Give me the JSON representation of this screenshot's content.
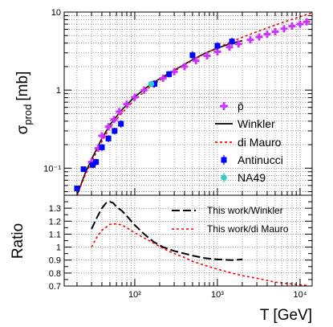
{
  "colors": {
    "pbar": "#cc33ff",
    "winkler": "#000000",
    "dimauro": "#ff0000",
    "antinucci": "#0000ff",
    "na49": "#33cccc",
    "grid": "#555555"
  },
  "chart_data": [
    {
      "type": "scatter",
      "title": "",
      "xlabel": "T [GeV]",
      "ylabel": "σ_prod [mb]",
      "ylabel_main": "σ",
      "ylabel_sub": "prod",
      "ylabel_unit": "[mb]",
      "xscale": "log",
      "yscale": "log",
      "xlim": [
        14,
        14000
      ],
      "ylim": [
        0.045,
        10
      ],
      "grid": true,
      "legend_position": "bottom-right",
      "x_tick_labels": [
        "10²",
        "10³",
        "10⁴"
      ],
      "x_tick_values": [
        100,
        1000,
        10000
      ],
      "y_tick_labels": [
        "10⁻¹",
        "1",
        "10"
      ],
      "y_tick_values": [
        0.1,
        1,
        10
      ],
      "series": [
        {
          "name": "p̄",
          "kind": "markers-plus",
          "color_key": "pbar",
          "x": [
            30,
            36,
            40,
            48,
            56,
            65,
            80,
            100,
            130,
            170,
            220,
            300,
            400,
            550,
            750,
            1000,
            1400,
            1800,
            2500,
            3200,
            4000,
            5000,
            6400,
            8000,
            10000,
            12000
          ],
          "y": [
            0.12,
            0.18,
            0.26,
            0.34,
            0.42,
            0.53,
            0.66,
            0.81,
            1.0,
            1.2,
            1.42,
            1.72,
            2.0,
            2.38,
            2.75,
            3.1,
            3.55,
            3.9,
            4.4,
            4.8,
            5.2,
            5.6,
            6.1,
            6.6,
            7.0,
            7.5
          ]
        },
        {
          "name": "Winkler",
          "kind": "line-solid",
          "color_key": "winkler",
          "x": [
            20,
            25,
            30,
            40,
            50,
            70,
            100,
            150,
            200,
            300,
            500,
            700,
            1000,
            1500,
            2000
          ],
          "y": [
            0.045,
            0.085,
            0.13,
            0.24,
            0.36,
            0.56,
            0.82,
            1.15,
            1.4,
            1.8,
            2.45,
            2.95,
            3.45,
            4.0,
            4.3
          ]
        },
        {
          "name": "di Mauro",
          "kind": "line-dashed",
          "color_key": "dimauro",
          "x": [
            20,
            25,
            30,
            40,
            50,
            70,
            100,
            150,
            200,
            300,
            500,
            700,
            1000,
            1500,
            2000,
            3000,
            5000,
            7000,
            10000,
            14000
          ],
          "y": [
            0.045,
            0.08,
            0.12,
            0.22,
            0.33,
            0.51,
            0.75,
            1.08,
            1.33,
            1.75,
            2.4,
            2.9,
            3.5,
            4.2,
            4.75,
            5.6,
            6.8,
            7.7,
            8.7,
            9.8
          ]
        },
        {
          "name": "Antinucci",
          "kind": "markers-square",
          "color_key": "antinucci",
          "x": [
            20,
            24,
            31,
            34,
            40,
            48,
            57,
            68,
            173,
            260,
            500,
            1000,
            1500
          ],
          "y": [
            0.055,
            0.097,
            0.11,
            0.12,
            0.185,
            0.24,
            0.3,
            0.37,
            1.2,
            1.6,
            2.8,
            3.7,
            4.2
          ],
          "yerr": [
            0.005,
            0.008,
            0.01,
            0.012,
            0.02,
            0.025,
            0.03,
            0.04,
            0.12,
            0.15,
            0.35,
            0.4,
            0.5
          ]
        },
        {
          "name": "NA49",
          "kind": "markers-circle",
          "color_key": "na49",
          "x": [
            158
          ],
          "y": [
            1.2
          ],
          "yerr": [
            0.08
          ]
        }
      ]
    },
    {
      "type": "line",
      "title": "",
      "xlabel": "T [GeV]",
      "ylabel": "Ratio",
      "xscale": "log",
      "xlim": [
        14,
        14000
      ],
      "ylim": [
        0.7,
        1.4
      ],
      "grid": true,
      "legend_position": "top-right",
      "y_tick_labels": [
        "0.7",
        "0.8",
        "0.9",
        "1",
        "1.1",
        "1.2",
        "1.3"
      ],
      "y_tick_values": [
        0.7,
        0.8,
        0.9,
        1.0,
        1.1,
        1.2,
        1.3
      ],
      "series": [
        {
          "name": "This work/Winkler",
          "kind": "line-longdash",
          "color_key": "winkler",
          "x": [
            30,
            35,
            40,
            45,
            50,
            55,
            60,
            70,
            80,
            100,
            130,
            170,
            220,
            300,
            400,
            500,
            700,
            1000,
            1500,
            2000
          ],
          "y": [
            1.14,
            1.23,
            1.3,
            1.34,
            1.35,
            1.34,
            1.31,
            1.28,
            1.24,
            1.17,
            1.1,
            1.04,
            1.0,
            0.97,
            0.95,
            0.935,
            0.915,
            0.905,
            0.9,
            0.905
          ]
        },
        {
          "name": "This work/di Mauro",
          "kind": "line-dashed",
          "color_key": "dimauro",
          "x": [
            30,
            35,
            40,
            50,
            60,
            70,
            80,
            100,
            130,
            170,
            220,
            300,
            400,
            500,
            700,
            1000,
            1500,
            2000,
            3000,
            5000,
            7000,
            10000,
            12000
          ],
          "y": [
            1.0,
            1.08,
            1.13,
            1.175,
            1.18,
            1.17,
            1.15,
            1.11,
            1.07,
            1.03,
            0.99,
            0.95,
            0.92,
            0.89,
            0.86,
            0.83,
            0.8,
            0.78,
            0.76,
            0.73,
            0.72,
            0.71,
            0.705
          ]
        }
      ]
    }
  ]
}
